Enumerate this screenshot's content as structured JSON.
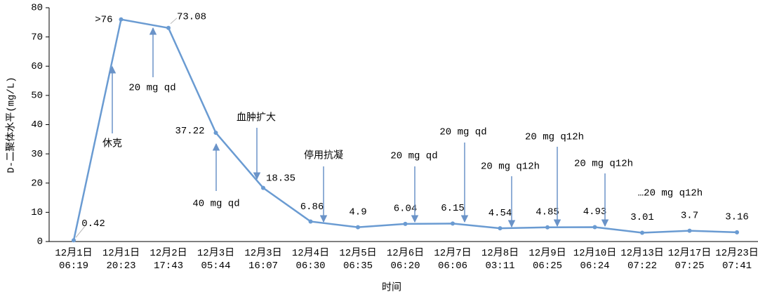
{
  "chart_data": {
    "type": "line",
    "x_label": "时间",
    "y_label": "D-二聚体水平(mg/L)",
    "categories": [
      "12月1日\n06:19",
      "12月1日\n20:23",
      "12月2日\n17:43",
      "12月3日\n05:44",
      "12月3日\n16:07",
      "12月4日\n06:30",
      "12月5日\n06:35",
      "12月6日\n06:20",
      "12月7日\n06:06",
      "12月8日\n03:11",
      "12月9日\n06:25",
      "12月10日\n06:24",
      "12月13日\n07:22",
      "12月17日\n07:25",
      "12月23日\n07:41"
    ],
    "values": [
      0.42,
      76,
      73.08,
      37.22,
      18.35,
      6.86,
      4.9,
      6.04,
      6.15,
      4.54,
      4.85,
      4.93,
      3.01,
      3.7,
      3.16
    ],
    "value_labels": [
      "0.42",
      ">76",
      "73.08",
      "37.22",
      "18.35",
      "6.86",
      "4.9",
      "6.04",
      "6.15",
      "4.54",
      "4.85",
      "4.93",
      "3.01",
      "3.7",
      "3.16"
    ],
    "color": "#6a9bd2",
    "ylim": [
      0,
      80
    ],
    "yticks": [
      0,
      10,
      20,
      30,
      40,
      50,
      60,
      70,
      80
    ],
    "annotations": [
      "休克",
      "20 mg qd",
      "40 mg qd",
      "血肿扩大",
      "停用抗凝",
      "20 mg qd",
      "20 mg qd",
      "20 mg q12h",
      "20 mg q12h",
      "20 mg q12h",
      "…20 mg q12h"
    ]
  }
}
